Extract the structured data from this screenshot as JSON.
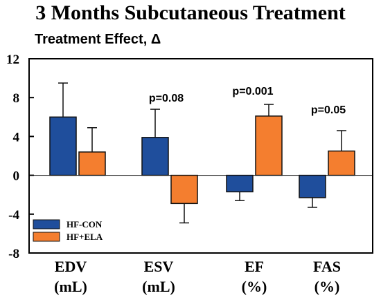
{
  "chart_data": {
    "type": "bar",
    "title": "3 Months Subcutaneous Treatment",
    "subtitle": "Treatment Effect, Δ",
    "categories": [
      "EDV",
      "ESV",
      "EF",
      "FAS"
    ],
    "category_units": [
      "(mL)",
      "(mL)",
      "(%)",
      "(%)"
    ],
    "series": [
      {
        "name": "HF-CON",
        "color": "#1f4e9c",
        "values": [
          6.0,
          3.9,
          -1.7,
          -2.3
        ],
        "error": [
          3.5,
          2.9,
          0.9,
          1.0
        ],
        "error_direction": "away_from_zero"
      },
      {
        "name": "HF+ELA",
        "color": "#f47e2f",
        "values": [
          2.4,
          -2.9,
          6.1,
          2.5
        ],
        "error": [
          2.5,
          2.0,
          1.2,
          2.1
        ],
        "error_direction": "away_from_zero"
      }
    ],
    "annotations": [
      {
        "category": "ESV",
        "text": "p=0.08"
      },
      {
        "category": "EF",
        "text": "p=0.001"
      },
      {
        "category": "FAS",
        "text": "p=0.05"
      }
    ],
    "ylim": [
      -8,
      12
    ],
    "yticks": [
      12,
      8,
      4,
      0,
      -4,
      -8
    ],
    "xlabel": "",
    "ylabel": "",
    "grid": false,
    "legend_position": "bottom-left"
  }
}
